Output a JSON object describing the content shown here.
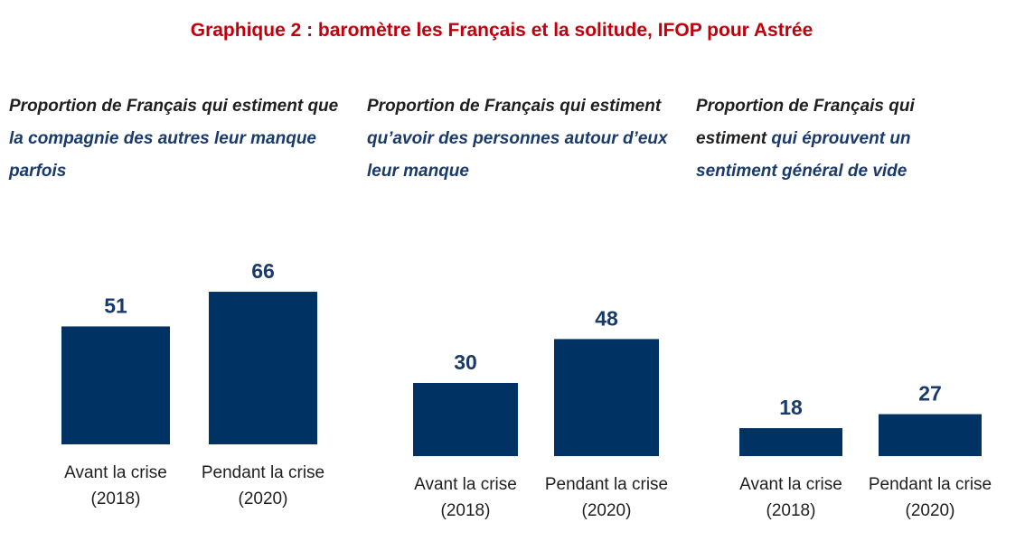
{
  "title": "Graphique 2 : baromètre les Français et la solitude, IFOP pour Astrée",
  "colors": {
    "title": "#c0000c",
    "bar": "#003264",
    "accent_text": "#1a3a6b"
  },
  "panels": [
    {
      "title_plain": "Proportion de Français qui estiment que ",
      "title_accent": "la compagnie des autres leur manque parfois"
    },
    {
      "title_plain": "Proportion de Français qui estiment ",
      "title_accent": "qu’avoir des personnes autour d’eux leur manque"
    },
    {
      "title_plain": "Proportion de Français qui estiment ",
      "title_accent": "qui éprouvent un sentiment général de vide"
    }
  ],
  "chart_data": [
    {
      "type": "bar",
      "categories": [
        "Avant la crise (2018)",
        "Pendant la crise (2020)"
      ],
      "values": [
        51,
        66
      ]
    },
    {
      "type": "bar",
      "categories": [
        "Avant la crise (2018)",
        "Pendant la crise (2020)"
      ],
      "values": [
        30,
        48
      ]
    },
    {
      "type": "bar",
      "categories": [
        "Avant la crise (2018)",
        "Pendant la crise (2020)"
      ],
      "values": [
        18,
        27
      ]
    }
  ]
}
